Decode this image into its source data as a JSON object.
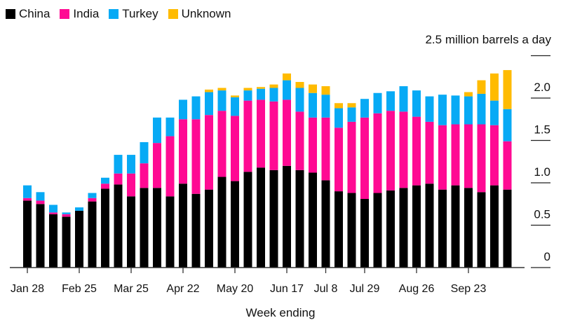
{
  "chart_data": {
    "type": "bar",
    "stacked": true,
    "title": "",
    "xlabel": "Week ending",
    "ylabel": "million barrels a day",
    "unit_label": "2.5 million barrels a day",
    "ylim": [
      0,
      2.5
    ],
    "yticks": [
      0,
      0.5,
      1.0,
      1.5,
      2.0,
      2.5
    ],
    "ytick_labels": [
      "0",
      "0.5",
      "1.0",
      "1.5",
      "2.0"
    ],
    "xtick_labels": [
      {
        "index": 0,
        "label": "Jan 28"
      },
      {
        "index": 4,
        "label": "Feb 25"
      },
      {
        "index": 8,
        "label": "Mar 25"
      },
      {
        "index": 12,
        "label": "Apr 22"
      },
      {
        "index": 16,
        "label": "May 20"
      },
      {
        "index": 20,
        "label": "Jun 17"
      },
      {
        "index": 23,
        "label": "Jul 8"
      },
      {
        "index": 26,
        "label": "Jul 29"
      },
      {
        "index": 30,
        "label": "Aug 26"
      },
      {
        "index": 34,
        "label": "Sep 23"
      }
    ],
    "legend_position": "top-left",
    "series": [
      {
        "name": "China",
        "color": "#000000",
        "values": [
          0.79,
          0.75,
          0.63,
          0.6,
          0.67,
          0.78,
          0.93,
          0.98,
          0.84,
          0.94,
          0.94,
          0.84,
          0.99,
          0.87,
          0.92,
          1.07,
          1.02,
          1.13,
          1.18,
          1.15,
          1.2,
          1.15,
          1.12,
          1.03,
          0.9,
          0.88,
          0.81,
          0.88,
          0.91,
          0.94,
          0.97,
          0.99,
          0.92,
          0.97,
          0.94,
          0.89,
          0.97,
          0.92
        ]
      },
      {
        "name": "India",
        "color": "#ff0a93",
        "values": [
          0.03,
          0.04,
          0.02,
          0.03,
          0.0,
          0.04,
          0.06,
          0.13,
          0.27,
          0.29,
          0.53,
          0.71,
          0.76,
          0.88,
          0.88,
          0.78,
          0.77,
          0.84,
          0.8,
          0.81,
          0.78,
          0.69,
          0.65,
          0.74,
          0.75,
          0.84,
          0.96,
          0.94,
          0.94,
          0.9,
          0.81,
          0.73,
          0.76,
          0.72,
          0.75,
          0.8,
          0.71,
          0.57
        ]
      },
      {
        "name": "Turkey",
        "color": "#07aaf5",
        "values": [
          0.15,
          0.1,
          0.09,
          0.02,
          0.04,
          0.06,
          0.07,
          0.22,
          0.22,
          0.25,
          0.3,
          0.22,
          0.23,
          0.27,
          0.27,
          0.24,
          0.22,
          0.12,
          0.13,
          0.16,
          0.23,
          0.28,
          0.29,
          0.27,
          0.23,
          0.17,
          0.22,
          0.24,
          0.23,
          0.3,
          0.31,
          0.3,
          0.36,
          0.34,
          0.33,
          0.36,
          0.29,
          0.38
        ]
      },
      {
        "name": "Unknown",
        "color": "#ffbb00",
        "values": [
          0,
          0,
          0,
          0,
          0,
          0,
          0,
          0,
          0,
          0,
          0,
          0,
          0,
          0,
          0.03,
          0.03,
          0.02,
          0.03,
          0.02,
          0.04,
          0.08,
          0.07,
          0.1,
          0.1,
          0.06,
          0.05,
          0,
          0,
          0,
          0,
          0,
          0,
          0,
          0,
          0.05,
          0.16,
          0.32,
          0.46
        ]
      }
    ]
  }
}
